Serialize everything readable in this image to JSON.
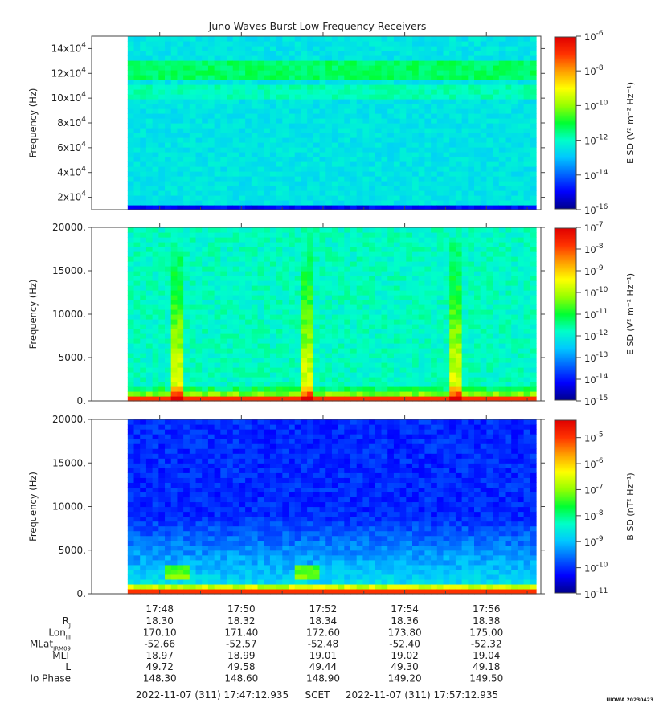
{
  "title": "Juno Waves Burst Low Frequency Receivers",
  "footer": {
    "start": "2022-11-07 (311) 17:47:12.935",
    "scet": "SCET",
    "end": "2022-11-07 (311) 17:57:12.935",
    "watermark": "UIOWA 20230423"
  },
  "time_axis": {
    "ticks": [
      "17:48",
      "17:50",
      "17:52",
      "17:54",
      "17:56"
    ]
  },
  "ephemeris": [
    {
      "label": "R",
      "sub": "J",
      "values": [
        "18.30",
        "18.32",
        "18.34",
        "18.36",
        "18.38"
      ]
    },
    {
      "label": "Lon",
      "sub": "III",
      "values": [
        "170.10",
        "171.40",
        "172.60",
        "173.80",
        "175.00"
      ]
    },
    {
      "label": "MLat",
      "sub": "JRM09",
      "values": [
        "-52.66",
        "-52.57",
        "-52.48",
        "-52.40",
        "-52.32"
      ]
    },
    {
      "label": "MLT",
      "sub": "",
      "values": [
        "18.97",
        "18.99",
        "19.01",
        "19.02",
        "19.04"
      ]
    },
    {
      "label": "L",
      "sub": "",
      "values": [
        "49.72",
        "49.58",
        "49.44",
        "49.30",
        "49.18"
      ]
    },
    {
      "label": "Io Phase",
      "sub": "",
      "values": [
        "148.30",
        "148.60",
        "148.90",
        "149.20",
        "149.50"
      ]
    }
  ],
  "colormap": [
    "#00008c",
    "#0000ff",
    "#0064ff",
    "#00c8ff",
    "#00ffc8",
    "#00ff32",
    "#96ff00",
    "#ffff00",
    "#ffa000",
    "#ff3200",
    "#e00000"
  ],
  "chart_data": [
    {
      "type": "heatmap",
      "name": "panel-1",
      "ylabel": "Frequency (Hz)",
      "yticks": [
        {
          "value": 20000,
          "base": "2x10",
          "exp": "4"
        },
        {
          "value": 40000,
          "base": "4x10",
          "exp": "4"
        },
        {
          "value": 60000,
          "base": "6x10",
          "exp": "4"
        },
        {
          "value": 80000,
          "base": "8x10",
          "exp": "4"
        },
        {
          "value": 100000,
          "base": "10x10",
          "exp": "4"
        },
        {
          "value": 120000,
          "base": "12x10",
          "exp": "4"
        },
        {
          "value": 140000,
          "base": "14x10",
          "exp": "4"
        }
      ],
      "ylim": [
        10000,
        150000
      ],
      "data_time_range": [
        "17:47:12.935",
        "17:57:12.935"
      ],
      "colorbar": {
        "label": "E SD (V² m⁻² Hz⁻¹)",
        "log_range": [
          -16,
          -6
        ],
        "ticks": [
          -6,
          -8,
          -10,
          -12,
          -14,
          -16
        ],
        "scale": "log"
      }
    },
    {
      "type": "heatmap",
      "name": "panel-2",
      "ylabel": "Frequency (Hz)",
      "yticks": [
        {
          "value": 0,
          "label": "0."
        },
        {
          "value": 5000,
          "label": "5000."
        },
        {
          "value": 10000,
          "label": "10000."
        },
        {
          "value": 15000,
          "label": "15000."
        },
        {
          "value": 20000,
          "label": "20000."
        }
      ],
      "ylim": [
        0,
        20000
      ],
      "data_time_range": [
        "17:47:12.935",
        "17:57:12.935"
      ],
      "colorbar": {
        "label": "E SD (V² m⁻² Hz⁻¹)",
        "log_range": [
          -15,
          -7
        ],
        "ticks": [
          -7,
          -8,
          -9,
          -10,
          -11,
          -12,
          -13,
          -14,
          -15
        ],
        "scale": "log"
      }
    },
    {
      "type": "heatmap",
      "name": "panel-3",
      "ylabel": "Frequency (Hz)",
      "yticks": [
        {
          "value": 0,
          "label": "0."
        },
        {
          "value": 5000,
          "label": "5000."
        },
        {
          "value": 10000,
          "label": "10000."
        },
        {
          "value": 15000,
          "label": "15000."
        },
        {
          "value": 20000,
          "label": "20000."
        }
      ],
      "ylim": [
        0,
        20000
      ],
      "data_time_range": [
        "17:47:12.935",
        "17:57:12.935"
      ],
      "colorbar": {
        "label": "B SD (nT² Hz⁻¹)",
        "log_range": [
          -11,
          -4.3
        ],
        "ticks": [
          -5,
          -6,
          -7,
          -8,
          -9,
          -10,
          -11
        ],
        "scale": "log"
      }
    }
  ]
}
